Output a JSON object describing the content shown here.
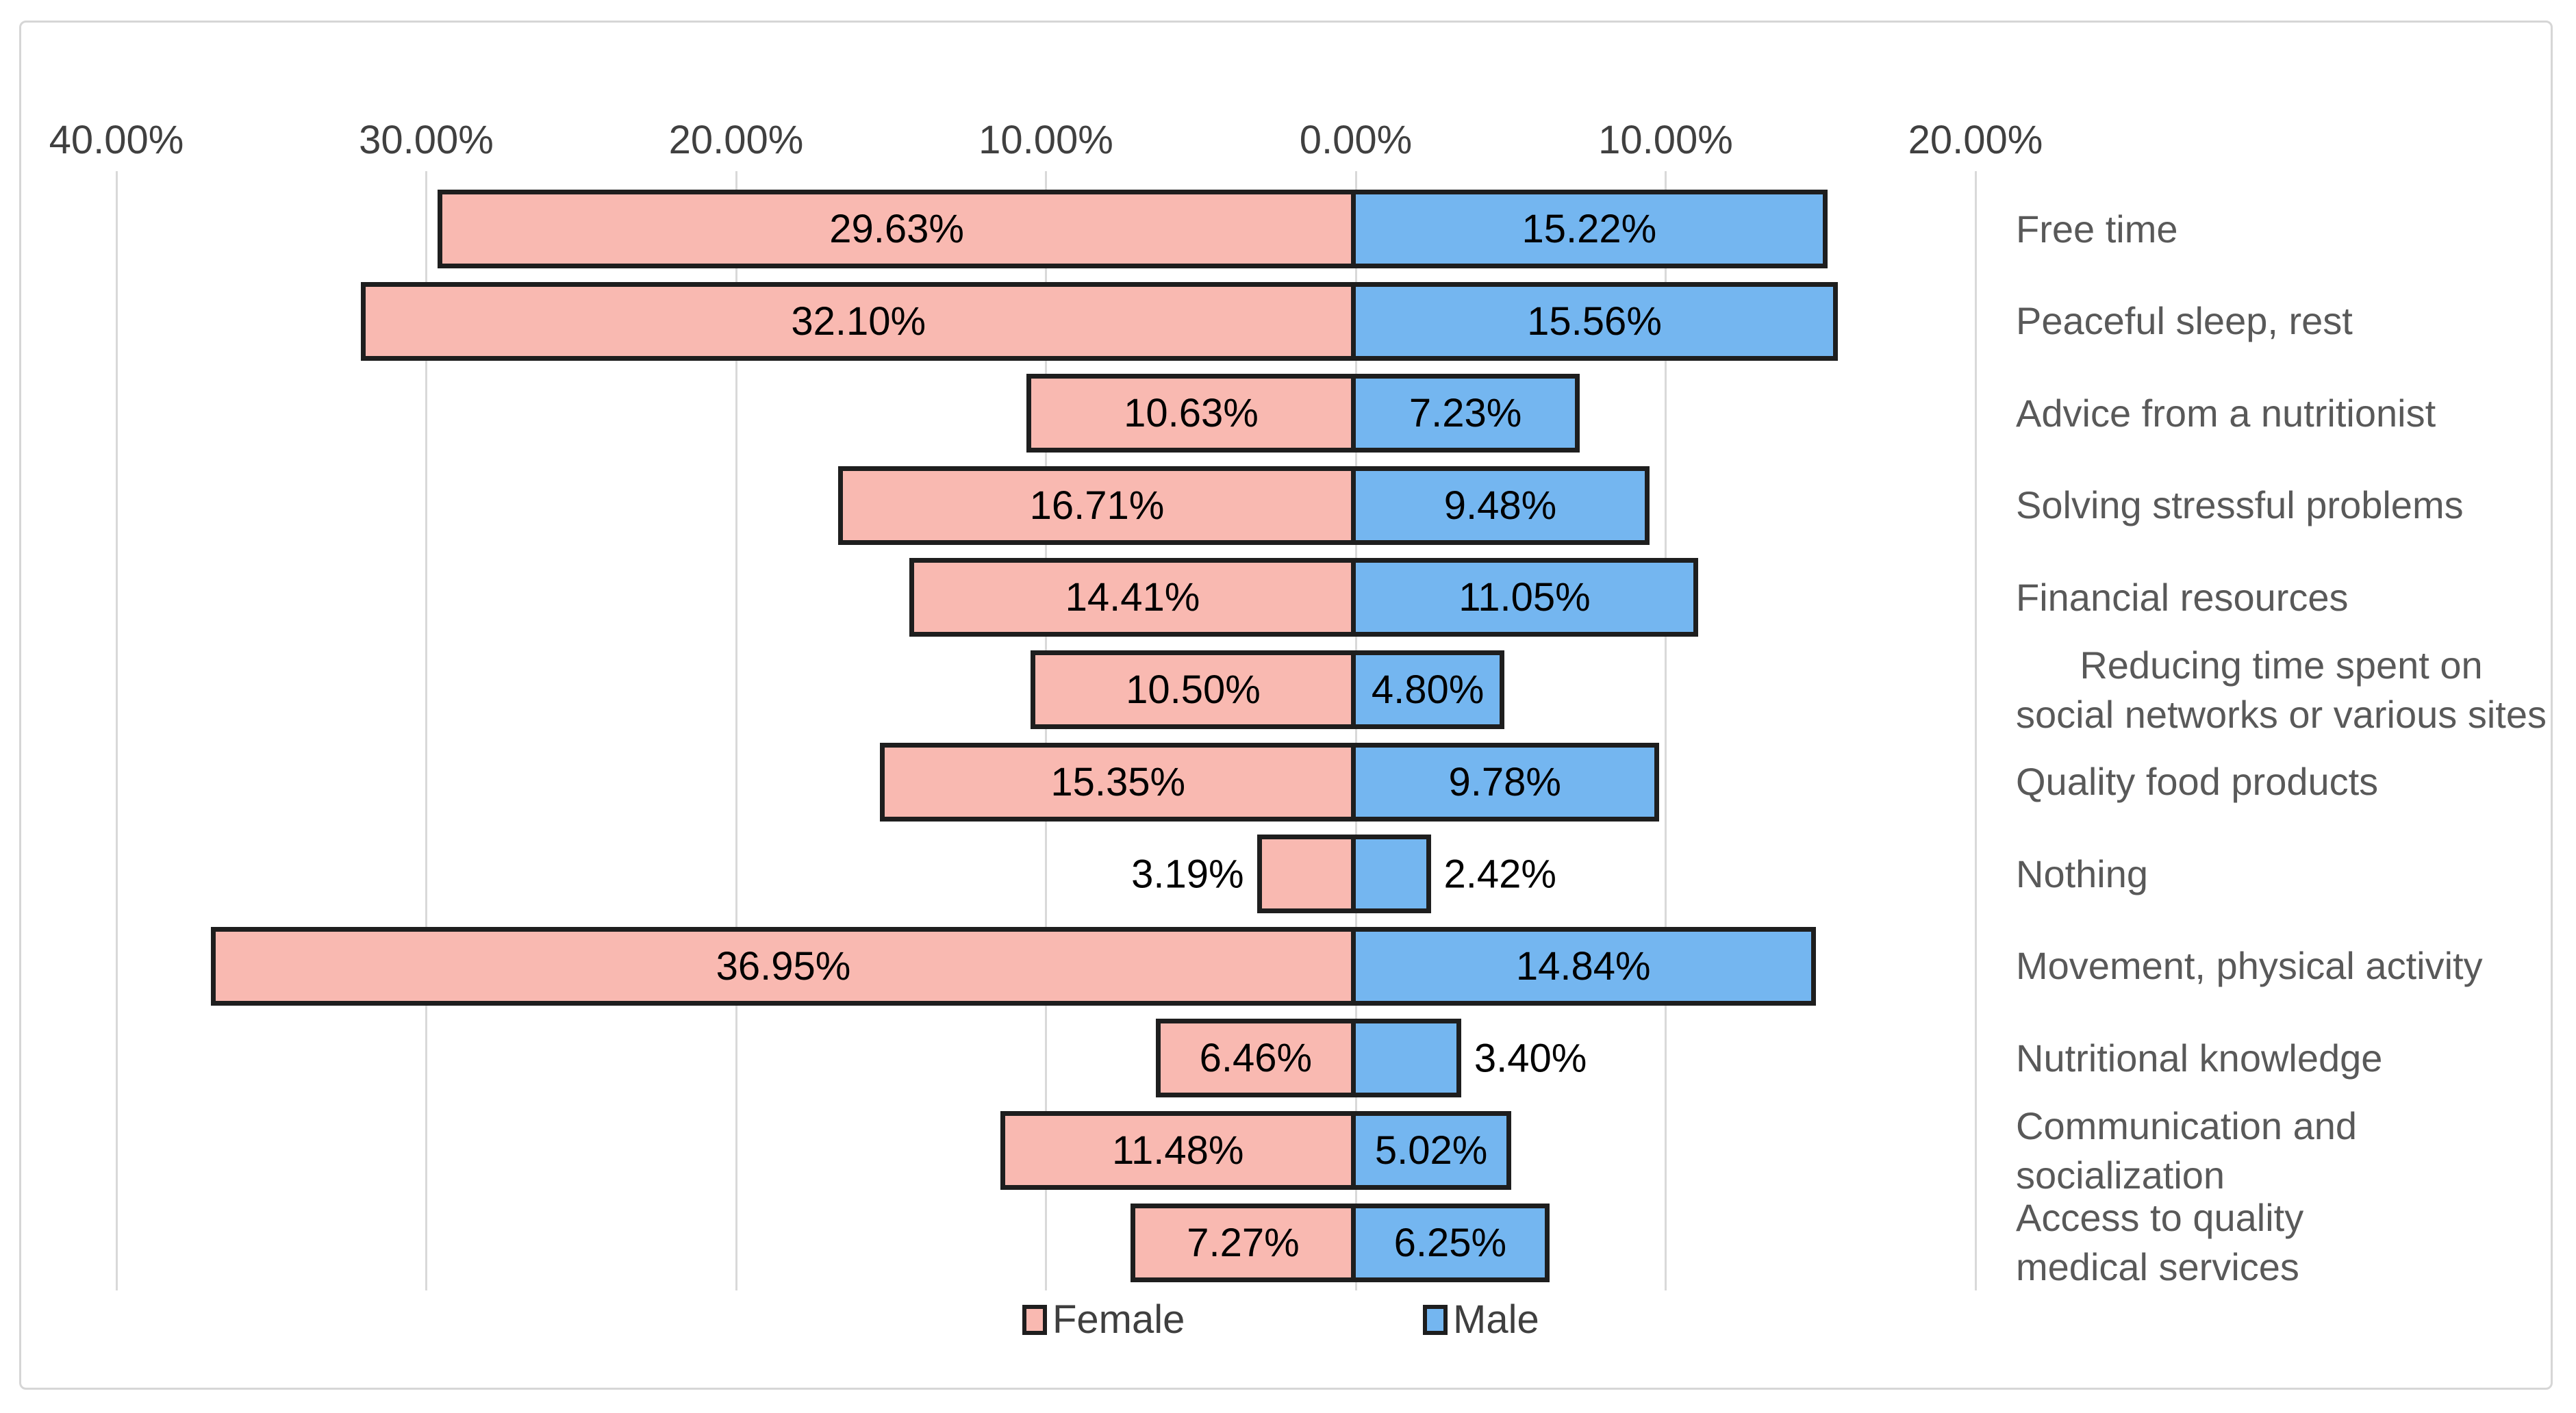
{
  "chart_data": {
    "type": "bar",
    "variant": "diverging-horizontal",
    "title": "",
    "xlabel": "",
    "ylabel": "",
    "grid": "vertical",
    "legend_position": "bottom",
    "axis": {
      "ticks": [
        "40.00%",
        "30.00%",
        "20.00%",
        "10.00%",
        "0.00%",
        "10.00%",
        "20.00%"
      ],
      "tick_values": [
        -40,
        -30,
        -20,
        -10,
        0,
        10,
        20
      ],
      "left_max": 40,
      "right_max": 20
    },
    "series": [
      {
        "name": "Female",
        "color": "#f9b9b1"
      },
      {
        "name": "Male",
        "color": "#74b6f0"
      }
    ],
    "rows": [
      {
        "label": "Free time",
        "female": 29.63,
        "male": 15.22,
        "female_label": "29.63%",
        "male_label": "15.22%",
        "align": "left"
      },
      {
        "label": "Peaceful sleep, rest",
        "female": 32.1,
        "male": 15.56,
        "female_label": "32.10%",
        "male_label": "15.56%",
        "align": "left"
      },
      {
        "label": "Advice from a nutritionist",
        "female": 10.63,
        "male": 7.23,
        "female_label": "10.63%",
        "male_label": "7.23%",
        "align": "left"
      },
      {
        "label": "Solving stressful problems",
        "female": 16.71,
        "male": 9.48,
        "female_label": "16.71%",
        "male_label": "9.48%",
        "align": "left"
      },
      {
        "label": "Financial resources",
        "female": 14.41,
        "male": 11.05,
        "female_label": "14.41%",
        "male_label": "11.05%",
        "align": "left"
      },
      {
        "label": "Reducing time spent on\nsocial networks or various sites",
        "female": 10.5,
        "male": 4.8,
        "female_label": "10.50%",
        "male_label": "4.80%",
        "align": "center"
      },
      {
        "label": "Quality food products",
        "female": 15.35,
        "male": 9.78,
        "female_label": "15.35%",
        "male_label": "9.78%",
        "align": "left"
      },
      {
        "label": "Nothing",
        "female": 3.19,
        "male": 2.42,
        "female_label": "3.19%",
        "male_label": "2.42%",
        "align": "left"
      },
      {
        "label": "Movement, physical activity",
        "female": 36.95,
        "male": 14.84,
        "female_label": "36.95%",
        "male_label": "14.84%",
        "align": "left"
      },
      {
        "label": "Nutritional knowledge",
        "female": 6.46,
        "male": 3.4,
        "female_label": "6.46%",
        "male_label": "3.40%",
        "align": "left"
      },
      {
        "label": "Communication and socialization",
        "female": 11.48,
        "male": 5.02,
        "female_label": "11.48%",
        "male_label": "5.02%",
        "align": "left"
      },
      {
        "label": "Access to quality\nmedical services",
        "female": 7.27,
        "male": 6.25,
        "female_label": "7.27%",
        "male_label": "6.25%",
        "align": "left"
      }
    ],
    "colors": {
      "female_fill": "#f9b9b1",
      "male_fill": "#74b6f0",
      "bar_border": "#1e1e1e",
      "gridline": "#d9d9d9",
      "frame_border": "#d6d6d6",
      "axis_text": "#404040",
      "category_text": "#595959",
      "value_text": "#000000"
    }
  }
}
